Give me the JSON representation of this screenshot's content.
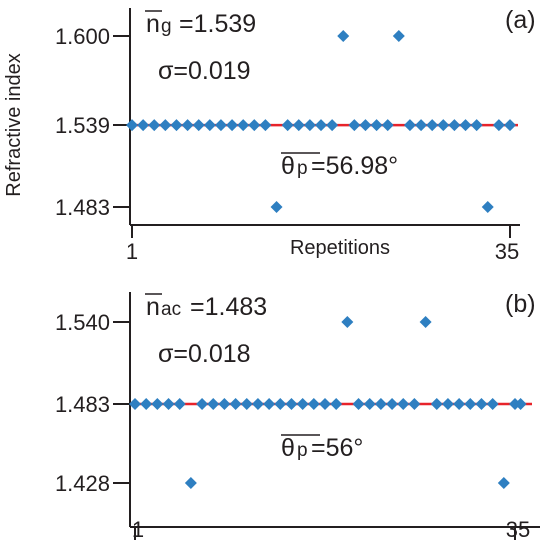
{
  "chart_data": [
    {
      "type": "scatter",
      "panel_label": "(a)",
      "ylabel": "Refractive index",
      "xlabel": "Repetitions",
      "x_ticks": [
        "1",
        "35"
      ],
      "y_ticks": [
        "1.600",
        "1.539",
        "1.483"
      ],
      "xlim": [
        1,
        35
      ],
      "ylim": [
        1.483,
        1.6
      ],
      "mean_line": 1.539,
      "x": [
        1,
        2,
        3,
        4,
        5,
        6,
        7,
        8,
        9,
        10,
        11,
        12,
        13,
        14,
        15,
        16,
        17,
        18,
        19,
        20,
        21,
        22,
        23,
        24,
        25,
        26,
        27,
        28,
        29,
        30,
        31,
        32,
        33,
        34,
        35
      ],
      "values": [
        1.539,
        1.539,
        1.539,
        1.539,
        1.539,
        1.539,
        1.539,
        1.539,
        1.539,
        1.539,
        1.539,
        1.539,
        1.539,
        1.483,
        1.539,
        1.539,
        1.539,
        1.539,
        1.539,
        1.6,
        1.539,
        1.539,
        1.539,
        1.539,
        1.6,
        1.539,
        1.539,
        1.539,
        1.539,
        1.539,
        1.539,
        1.539,
        1.483,
        1.539,
        1.539
      ],
      "annotations": {
        "mean_symbol": "n",
        "mean_sub": "g",
        "mean_value": "=1.539",
        "sigma": "σ=0.019",
        "theta_symbol": "θ",
        "theta_sub": "p",
        "theta_value": "=56.98°"
      },
      "marker_color": "#2e7fc1",
      "line_color": "#e8232a"
    },
    {
      "type": "scatter",
      "panel_label": "(b)",
      "x_ticks": [
        "1",
        "35"
      ],
      "y_ticks": [
        "1.540",
        "1.483",
        "1.428"
      ],
      "xlim": [
        1,
        35
      ],
      "ylim": [
        1.428,
        1.54
      ],
      "mean_line": 1.483,
      "x": [
        1,
        2,
        3,
        4,
        5,
        6,
        7,
        8,
        9,
        10,
        11,
        12,
        13,
        14,
        15,
        16,
        17,
        18,
        19,
        20,
        21,
        22,
        23,
        24,
        25,
        26,
        27,
        28,
        29,
        30,
        31,
        32,
        33,
        34,
        35
      ],
      "values": [
        1.483,
        1.483,
        1.483,
        1.483,
        1.483,
        1.428,
        1.483,
        1.483,
        1.483,
        1.483,
        1.483,
        1.483,
        1.483,
        1.483,
        1.483,
        1.483,
        1.483,
        1.483,
        1.483,
        1.54,
        1.483,
        1.483,
        1.483,
        1.483,
        1.483,
        1.483,
        1.54,
        1.483,
        1.483,
        1.483,
        1.483,
        1.483,
        1.483,
        1.428,
        1.483
      ],
      "extra_points": [
        {
          "x": 35.5,
          "y": 1.483
        }
      ],
      "annotations": {
        "mean_symbol": "n",
        "mean_sub": "ac",
        "mean_value": "=1.483",
        "sigma": "σ=0.018",
        "theta_symbol": "θ",
        "theta_sub": "p",
        "theta_value": "=56°"
      },
      "marker_color": "#2e7fc1",
      "line_color": "#e8232a"
    }
  ]
}
